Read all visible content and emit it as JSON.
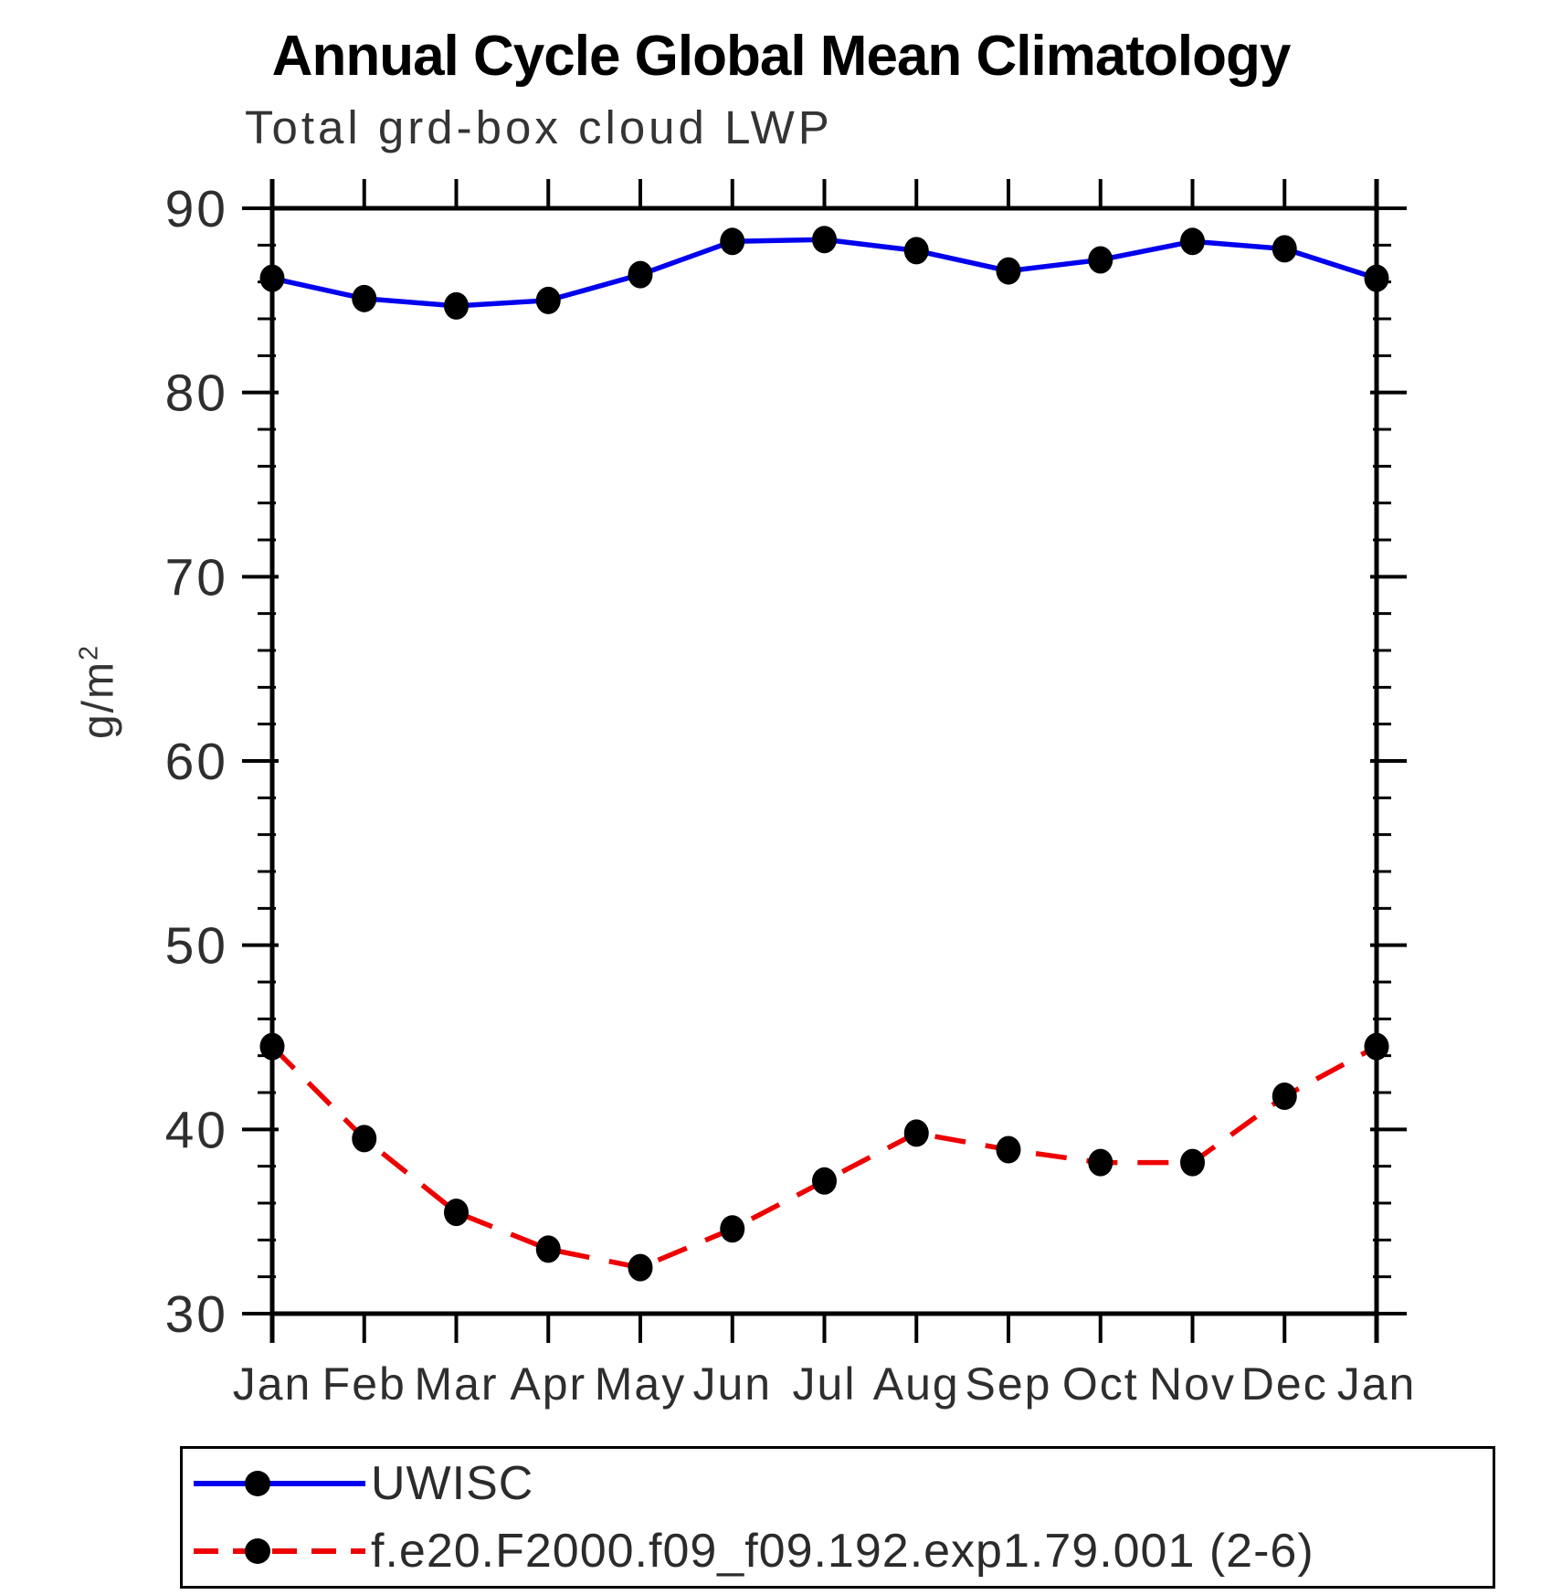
{
  "title": "Annual Cycle Global Mean Climatology",
  "subtitle": "Total grd-box cloud LWP",
  "y_axis": {
    "label_text": "g/m",
    "label_sup": "2",
    "min": 30,
    "max": 90,
    "major_step": 10,
    "minor_step": 2,
    "major_tick_labels": [
      "30",
      "40",
      "50",
      "60",
      "70",
      "80",
      "90"
    ]
  },
  "x_axis": {
    "tick_labels": [
      "Jan",
      "Feb",
      "Mar",
      "Apr",
      "May",
      "Jun",
      "Jul",
      "Aug",
      "Sep",
      "Oct",
      "Nov",
      "Dec",
      "Jan"
    ]
  },
  "chart_data": {
    "type": "line",
    "title": "Annual Cycle Global Mean Climatology",
    "subtitle": "Total grd-box cloud LWP",
    "categories": [
      "Jan",
      "Feb",
      "Mar",
      "Apr",
      "May",
      "Jun",
      "Jul",
      "Aug",
      "Sep",
      "Oct",
      "Nov",
      "Dec",
      "Jan"
    ],
    "xlabel": "",
    "ylabel": "g/m²",
    "ylim": [
      30,
      90
    ],
    "grid": false,
    "legend_position": "bottom",
    "series": [
      {
        "name": "UWISC",
        "color": "#0000ee",
        "line_style": "solid",
        "marker": "filled-black-circle",
        "values": [
          86.2,
          85.1,
          84.7,
          85.0,
          86.4,
          88.2,
          88.3,
          87.7,
          86.6,
          87.2,
          88.2,
          87.8,
          86.2
        ]
      },
      {
        "name": "f.e20.F2000.f09_f09.192.exp1.79.001 (2-6)",
        "color": "#ee0000",
        "line_style": "dashed",
        "marker": "filled-black-circle",
        "values": [
          44.5,
          39.5,
          35.5,
          33.5,
          32.5,
          34.6,
          37.2,
          39.8,
          38.9,
          38.2,
          38.2,
          41.8,
          44.5
        ]
      }
    ]
  },
  "colors": {
    "series1": "#0000ee",
    "series2": "#ee0000",
    "marker": "#000000",
    "axis": "#000000",
    "muted_text": "#2e2e2e",
    "background": "#ffffff"
  }
}
